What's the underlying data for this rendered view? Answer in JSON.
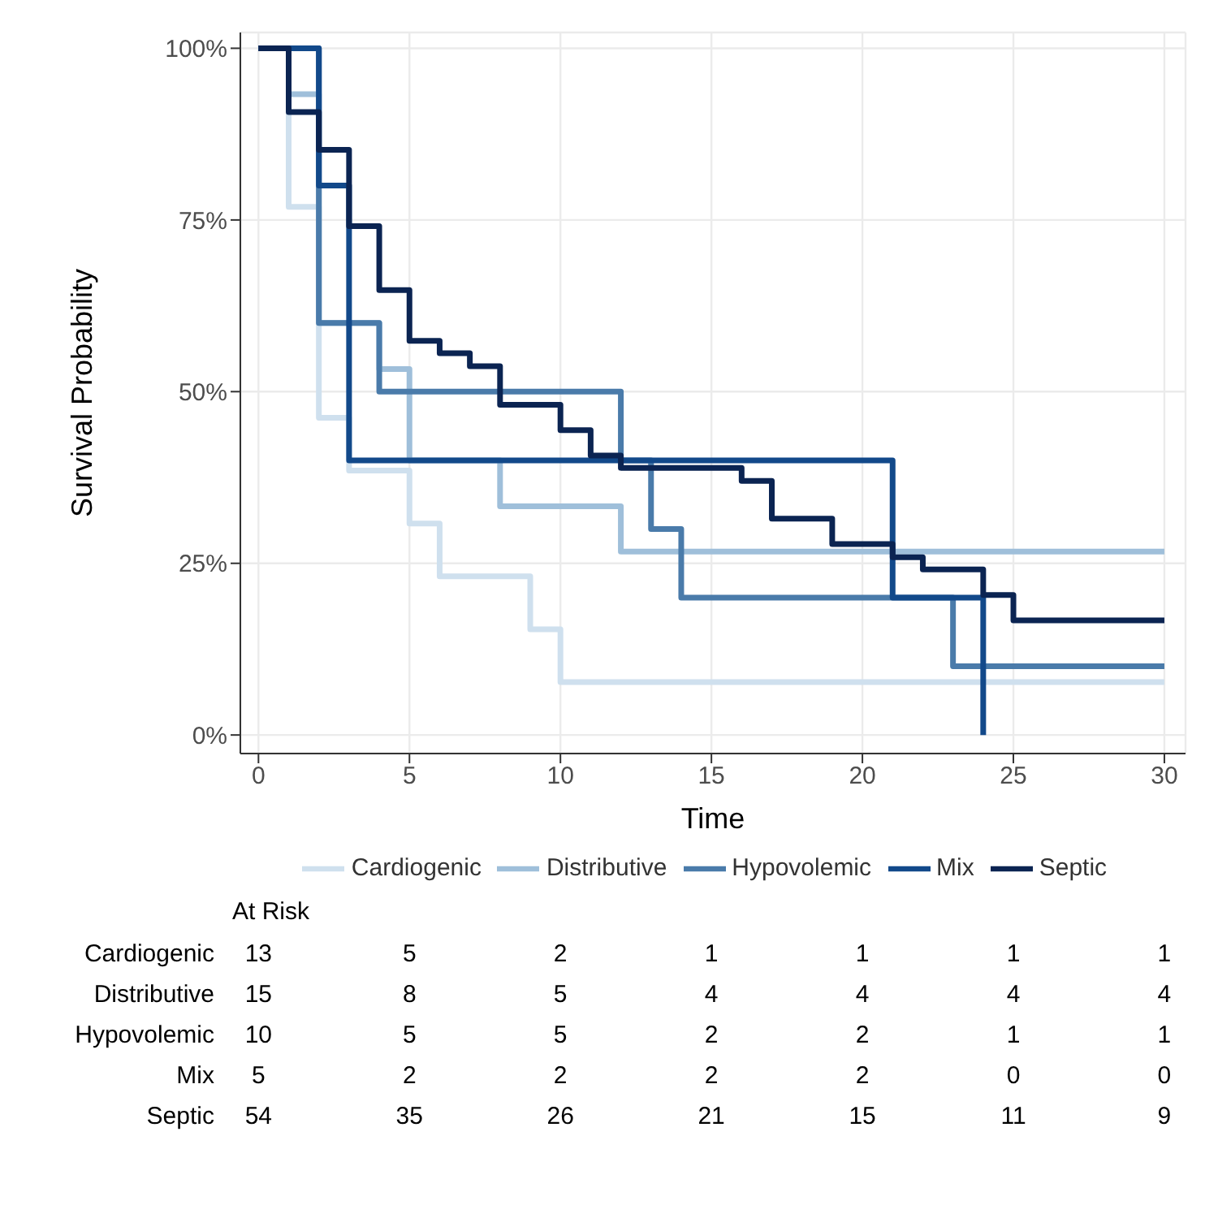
{
  "chart_data": [
    {
      "type": "step",
      "xlabel": "Time",
      "ylabel": "Survival Probability",
      "xlim": [
        -0.6,
        30.7
      ],
      "xticks": [
        0,
        5,
        10,
        15,
        20,
        25,
        30
      ],
      "ylim": [
        -2.7,
        102.3
      ],
      "yticks": [
        {
          "value": 0,
          "label": "0%"
        },
        {
          "value": 25,
          "label": "25%"
        },
        {
          "value": 50,
          "label": "50%"
        },
        {
          "value": 75,
          "label": "75%"
        },
        {
          "value": 100,
          "label": "100%"
        }
      ],
      "grid": true,
      "legend": "bottom",
      "marker": "none",
      "line_style": "solid",
      "series": [
        {
          "name": "Cardiogenic",
          "color": "#cfe0ee",
          "x": [
            0,
            1,
            2,
            3,
            5,
            6,
            9,
            10,
            30
          ],
          "values": [
            100,
            76.9,
            46.2,
            38.5,
            30.8,
            23.1,
            15.4,
            7.7,
            7.7
          ]
        },
        {
          "name": "Distributive",
          "color": "#9fbfda",
          "x": [
            0,
            1,
            2,
            4,
            5,
            8,
            12,
            30
          ],
          "values": [
            100,
            93.3,
            60,
            53.3,
            40,
            33.3,
            26.7,
            26.7
          ]
        },
        {
          "name": "Hypovolemic",
          "color": "#4a7baa",
          "x": [
            0,
            2,
            4,
            12,
            13,
            14,
            23,
            30
          ],
          "values": [
            100,
            60,
            50,
            40,
            30,
            20,
            10,
            10
          ]
        },
        {
          "name": "Mix",
          "color": "#12498a",
          "x": [
            0,
            2,
            3,
            21,
            24
          ],
          "values": [
            100,
            80,
            40,
            20,
            0
          ]
        },
        {
          "name": "Septic",
          "color": "#0b2452",
          "x": [
            0,
            1,
            2,
            3,
            4,
            5,
            6,
            7,
            8,
            10,
            11,
            12,
            16,
            17,
            19,
            21,
            22,
            24,
            25,
            30
          ],
          "values": [
            100,
            90.7,
            85.2,
            74.1,
            64.8,
            57.4,
            55.6,
            53.7,
            48.1,
            44.4,
            40.7,
            38.9,
            37.0,
            31.5,
            27.8,
            25.9,
            24.1,
            20.4,
            16.7,
            16.7
          ]
        }
      ]
    },
    {
      "type": "heatmap",
      "title": "At Risk",
      "categories": [
        null,
        null,
        null,
        null,
        null,
        null,
        null
      ],
      "data_labels": true,
      "y_categories": [
        "Cardiogenic",
        "Distributive",
        "Hypovolemic",
        "Mix",
        "Septic"
      ],
      "cells": [
        [
          13,
          5,
          2,
          1,
          1,
          1,
          1
        ],
        [
          15,
          8,
          5,
          4,
          4,
          4,
          4
        ],
        [
          10,
          5,
          5,
          2,
          2,
          1,
          1
        ],
        [
          5,
          2,
          2,
          2,
          2,
          0,
          0
        ],
        [
          54,
          35,
          26,
          21,
          15,
          11,
          9
        ]
      ]
    }
  ]
}
